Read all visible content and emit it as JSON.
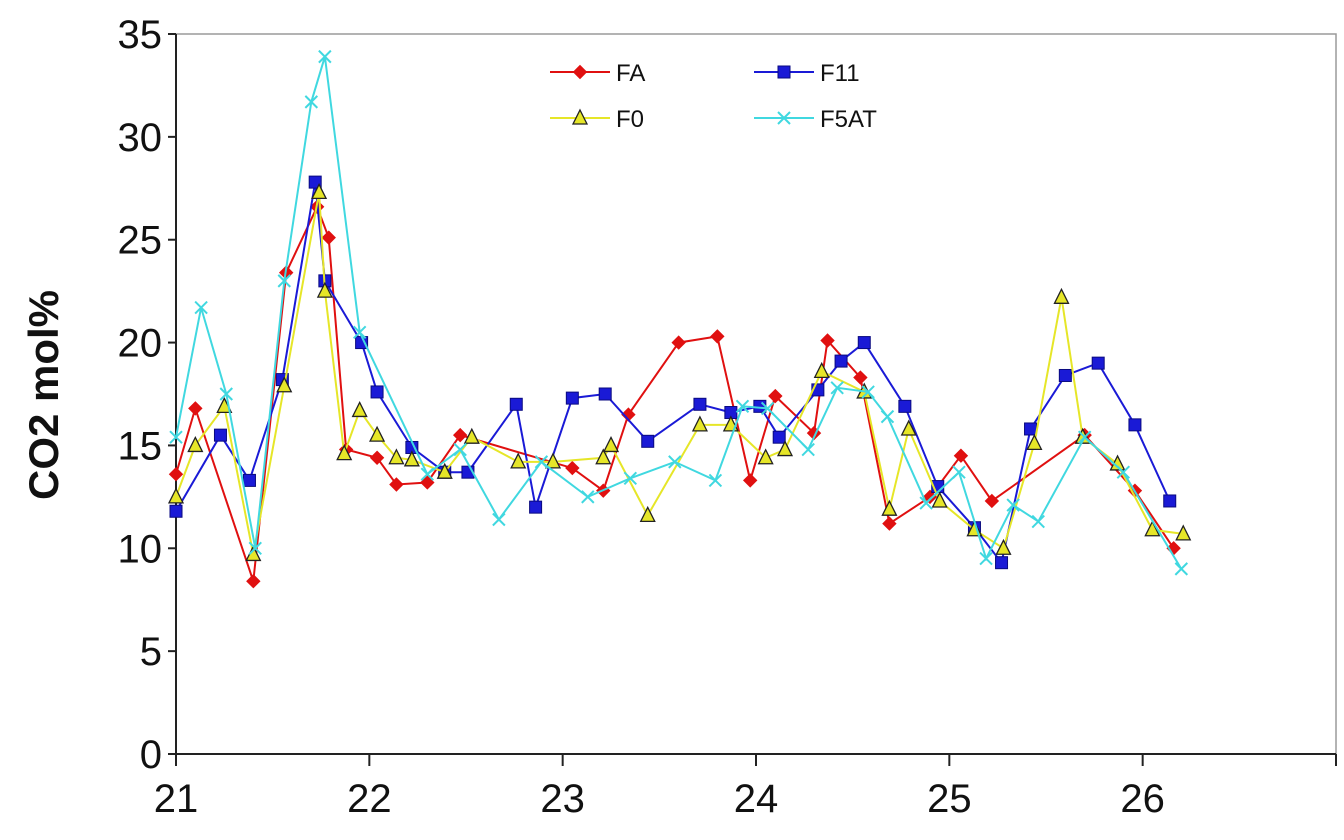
{
  "chart_data": {
    "type": "line",
    "title": "",
    "xlabel": "",
    "ylabel": "CO2 mol%",
    "xlim": [
      21,
      27
    ],
    "ylim": [
      0,
      35
    ],
    "xticks": [
      "21",
      "22",
      "23",
      "24",
      "25",
      "26"
    ],
    "yticks": [
      "0",
      "5",
      "10",
      "15",
      "20",
      "25",
      "30",
      "35"
    ],
    "grid": false,
    "legend_position": "top-center",
    "series": [
      {
        "name": "FA",
        "color": "#e01010",
        "marker": "diamond",
        "x": [
          21.0,
          21.1,
          21.4,
          21.57,
          21.73,
          21.79,
          21.88,
          22.04,
          22.14,
          22.3,
          22.47,
          23.05,
          23.21,
          23.34,
          23.6,
          23.8,
          23.97,
          24.1,
          24.3,
          24.37,
          24.54,
          24.69,
          24.9,
          25.06,
          25.22,
          25.7,
          25.96,
          26.16
        ],
        "y": [
          13.6,
          16.8,
          8.4,
          23.4,
          26.6,
          25.1,
          14.8,
          14.4,
          13.1,
          13.2,
          15.5,
          13.9,
          12.8,
          16.5,
          20.0,
          20.3,
          13.3,
          17.4,
          15.6,
          20.1,
          18.3,
          11.2,
          12.5,
          14.5,
          12.3,
          15.5,
          12.8,
          10.0
        ]
      },
      {
        "name": "F11",
        "color": "#1a1ad6",
        "marker": "square",
        "x": [
          21.0,
          21.23,
          21.38,
          21.55,
          21.72,
          21.77,
          21.96,
          22.04,
          22.22,
          22.39,
          22.51,
          22.76,
          22.86,
          23.05,
          23.22,
          23.44,
          23.71,
          23.87,
          24.02,
          24.12,
          24.32,
          24.44,
          24.56,
          24.77,
          24.94,
          25.13,
          25.27,
          25.42,
          25.6,
          25.77,
          25.96,
          26.14
        ],
        "y": [
          11.8,
          15.5,
          13.3,
          18.2,
          27.8,
          23.0,
          20.0,
          17.6,
          14.9,
          13.7,
          13.7,
          17.0,
          12.0,
          17.3,
          17.5,
          15.2,
          17.0,
          16.6,
          16.9,
          15.4,
          17.7,
          19.1,
          20.0,
          16.9,
          13.0,
          11.0,
          9.3,
          15.8,
          18.4,
          19.0,
          16.0,
          12.3
        ]
      },
      {
        "name": "F0",
        "color": "#e6e628",
        "marker": "triangle",
        "x": [
          21.0,
          21.1,
          21.25,
          21.4,
          21.56,
          21.74,
          21.77,
          21.87,
          21.95,
          22.04,
          22.14,
          22.22,
          22.39,
          22.53,
          22.77,
          22.95,
          23.21,
          23.25,
          23.44,
          23.71,
          23.87,
          24.05,
          24.15,
          24.34,
          24.56,
          24.69,
          24.79,
          24.95,
          25.13,
          25.28,
          25.44,
          25.58,
          25.69,
          25.87,
          26.05,
          26.21
        ],
        "y": [
          12.5,
          15.0,
          16.9,
          9.7,
          17.9,
          27.3,
          22.5,
          14.6,
          16.7,
          15.5,
          14.4,
          14.3,
          13.7,
          15.4,
          14.2,
          14.2,
          14.4,
          15.0,
          11.6,
          16.0,
          16.0,
          14.4,
          14.8,
          18.6,
          17.6,
          11.9,
          15.8,
          12.3,
          10.9,
          10.0,
          15.1,
          22.2,
          15.4,
          14.1,
          10.9,
          10.7
        ]
      },
      {
        "name": "F5AT",
        "color": "#40d8e0",
        "marker": "x",
        "x": [
          21.0,
          21.13,
          21.26,
          21.41,
          21.56,
          21.7,
          21.77,
          21.95,
          22.3,
          22.47,
          22.67,
          22.89,
          23.13,
          23.35,
          23.58,
          23.79,
          23.93,
          24.06,
          24.27,
          24.42,
          24.58,
          24.68,
          24.88,
          25.05,
          25.19,
          25.33,
          25.46,
          25.7,
          25.9,
          26.2
        ],
        "y": [
          15.4,
          21.7,
          17.5,
          10.0,
          23.0,
          31.7,
          33.9,
          20.5,
          13.6,
          14.8,
          11.4,
          14.2,
          12.5,
          13.4,
          14.2,
          13.3,
          16.9,
          16.8,
          14.8,
          17.8,
          17.6,
          16.4,
          12.2,
          13.7,
          9.5,
          12.1,
          11.3,
          15.4,
          13.7,
          9.0
        ]
      }
    ]
  }
}
